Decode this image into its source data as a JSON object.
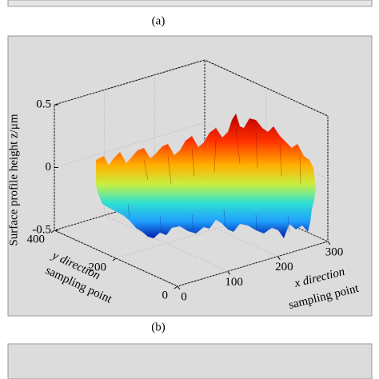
{
  "figure_labels": [
    "(a)",
    "(b)"
  ],
  "chart_data": {
    "type": "surface3d",
    "zlabel": "Surface profile height z/μm",
    "ylabel": [
      "y direction",
      "sampling point"
    ],
    "xlabel": [
      "x direction",
      "sampling point"
    ],
    "xlim": [
      0,
      300
    ],
    "xticks": [
      0,
      100,
      200,
      300
    ],
    "ylim": [
      0,
      400
    ],
    "yticks": [
      0,
      200,
      400
    ],
    "zlim": [
      -0.5,
      0.5
    ],
    "zticks": [
      0.5,
      0,
      -0.5
    ],
    "grid": true
  }
}
